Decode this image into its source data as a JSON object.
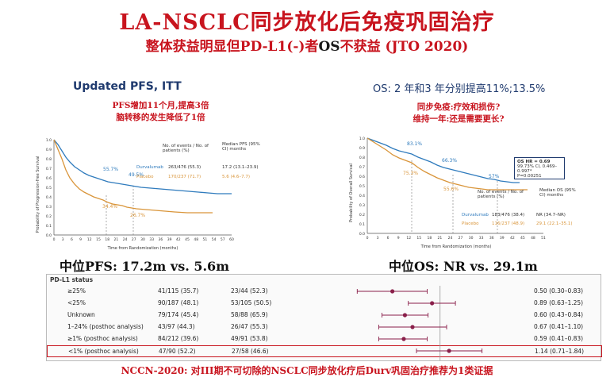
{
  "header": {
    "title": "LA-NSCLC同步放化后免疫巩固治疗",
    "subtitle_pre": "整体获益明显但PD-L1(-)者",
    "subtitle_os": "OS",
    "subtitle_post": "不获益 (JTO 2020)"
  },
  "pfs_panel": {
    "title": "Updated PFS, ITT",
    "note_line1": "PFS增加11个月,提高3倍",
    "note_line2": "脑转移的发生降低了1倍",
    "ylabel": "Probability of Progression-free Survival",
    "xlabel": "Time from Randomization (months)",
    "yticks": [
      "0.0",
      "0.1",
      "0.2",
      "0.3",
      "0.4",
      "0.5",
      "0.6",
      "0.7",
      "0.8",
      "0.9",
      "1.0"
    ],
    "xticks": [
      "0",
      "3",
      "6",
      "9",
      "12",
      "15",
      "18",
      "21",
      "24",
      "27",
      "30",
      "33",
      "36",
      "39",
      "42",
      "45",
      "48",
      "51",
      "54",
      "57",
      "60"
    ],
    "label_durva_12": "55.7%",
    "label_durva_18": "49.5%",
    "label_placebo_12": "34.4%",
    "label_placebo_18": "26.7%",
    "table_col1": "No. of events / No. of patients (%)",
    "table_col2": "Median PFS (95% CI) months",
    "durva_name": "Durvalumab",
    "durva_events": "263/476 (55.3)",
    "durva_median": "17.2 (13.1–23.9)",
    "placebo_name": "Placebo",
    "placebo_events": "170/237 (71.7)",
    "placebo_median": "5.6 (4.6–7.7)",
    "median_text": "中位PFS: 17.2m vs. 5.6m",
    "color_durva": "#2f7bbd",
    "color_placebo": "#d9953a"
  },
  "os_panel": {
    "title": "OS: 2 年和3 年分别提高11%;13.5%",
    "note_line1": "同步免疫:疗效和损伤?",
    "note_line2": "维持一年:还是需要更长?",
    "ylabel": "Probability of Overall Survival",
    "xlabel": "Time from Randomization (months)",
    "yticks": [
      "0.0",
      "0.1",
      "0.2",
      "0.3",
      "0.4",
      "0.5",
      "0.6",
      "0.7",
      "0.8",
      "0.9",
      "1.0"
    ],
    "xticks": [
      "0",
      "3",
      "6",
      "9",
      "12",
      "15",
      "18",
      "21",
      "24",
      "27",
      "30",
      "33",
      "36",
      "39",
      "42",
      "45",
      "48",
      "51"
    ],
    "label_durva_12": "83.1%",
    "label_durva_24": "66.3%",
    "label_durva_36": "57%",
    "label_placebo_12": "75.3%",
    "label_placebo_24": "55.6%",
    "hr_line1": "OS HR = 0.69",
    "hr_line2": "99.73% CI, 0.469–0.997*",
    "hr_line3": "P=0.00251",
    "table_col1": "No. of events / No. of patients (%)",
    "table_col2": "Median OS (95% CI) months",
    "durva_name": "Durvalumab",
    "durva_events": "183/476 (38.4)",
    "durva_median": "NR (34.7–NR)",
    "placebo_name": "Placebo",
    "placebo_events": "116/237 (48.9)",
    "placebo_median": "29.1 (22.1–35.1)",
    "median_text": "中位OS: NR vs. 29.1m"
  },
  "forest": {
    "header": "PD-L1 status",
    "rows": [
      {
        "label": "≥25%",
        "durva": "41/115 (35.7)",
        "placebo": "23/44 (52.3)",
        "hr": "0.50 (0.30–0.83)",
        "est": 0.5,
        "lo": 0.3,
        "hi": 0.83,
        "highlight": false
      },
      {
        "label": "<25%",
        "durva": "90/187 (48.1)",
        "placebo": "53/105 (50.5)",
        "hr": "0.89 (0.63–1.25)",
        "est": 0.89,
        "lo": 0.63,
        "hi": 1.25,
        "highlight": false
      },
      {
        "label": "Unknown",
        "durva": "79/174 (45.4)",
        "placebo": "58/88 (65.9)",
        "hr": "0.60 (0.43–0.84)",
        "est": 0.6,
        "lo": 0.43,
        "hi": 0.84,
        "highlight": false
      },
      {
        "label": "1–24% (posthoc analysis)",
        "durva": "43/97 (44.3)",
        "placebo": "26/47 (55.3)",
        "hr": "0.67 (0.41–1.10)",
        "est": 0.67,
        "lo": 0.41,
        "hi": 1.1,
        "highlight": false
      },
      {
        "label": "≥1% (posthoc analysis)",
        "durva": "84/212 (39.6)",
        "placebo": "49/91 (53.8)",
        "hr": "0.59 (0.41–0.83)",
        "est": 0.59,
        "lo": 0.41,
        "hi": 0.83,
        "highlight": false
      },
      {
        "label": "<1% (posthoc analysis)",
        "durva": "47/90 (52.2)",
        "placebo": "27/58 (46.6)",
        "hr": "1.14 (0.71–1.84)",
        "est": 1.14,
        "lo": 0.71,
        "hi": 1.84,
        "highlight": true
      }
    ]
  },
  "footer": {
    "text": "NCCN-2020: 对III期不可切除的NSCLC同步放化疗后Durv巩固治疗推荐为1类证据"
  }
}
